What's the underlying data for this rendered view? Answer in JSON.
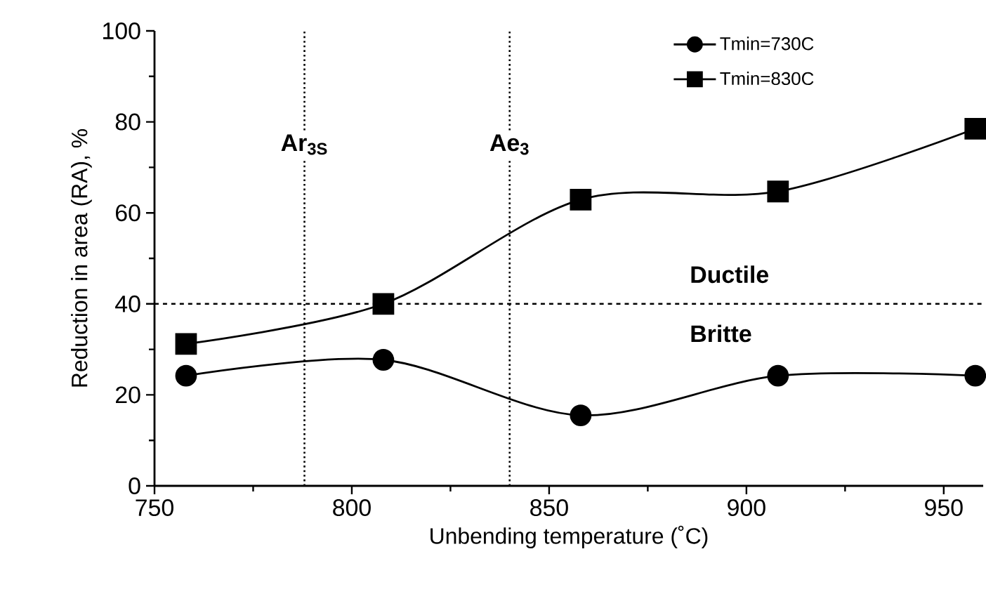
{
  "chart_data": {
    "type": "line",
    "xlabel": "Unbending temperature (˚C)",
    "ylabel": "Reduction in area (RA), %",
    "x": [
      758,
      808,
      858,
      908,
      958
    ],
    "series": [
      {
        "name": "Tmin=730C",
        "color": "#000000",
        "marker": "circle",
        "values": [
          24.2,
          27.7,
          15.5,
          24.2,
          24.2
        ]
      },
      {
        "name": "Tmin=830C",
        "color": "#000000",
        "marker": "square",
        "values": [
          31.2,
          40.0,
          62.9,
          64.7,
          78.5
        ]
      }
    ],
    "xlim": [
      750,
      960
    ],
    "xticks": [
      750,
      800,
      850,
      900,
      950
    ],
    "ylim": [
      0,
      100
    ],
    "yticks": [
      0,
      20,
      40,
      60,
      80,
      100
    ],
    "ref_lines": [
      {
        "axis": "x",
        "value": 788,
        "label": "Ar$_{3S}$",
        "line_style": "dotted"
      },
      {
        "axis": "x",
        "value": 840,
        "label": "Ae$_{3}$",
        "line_style": "dotted"
      },
      {
        "axis": "y",
        "value": 40,
        "line_style": "dashed"
      }
    ],
    "annotations": [
      "Ductile",
      "Britte"
    ],
    "legend": "top right",
    "grid": false,
    "line_style": "solid"
  }
}
